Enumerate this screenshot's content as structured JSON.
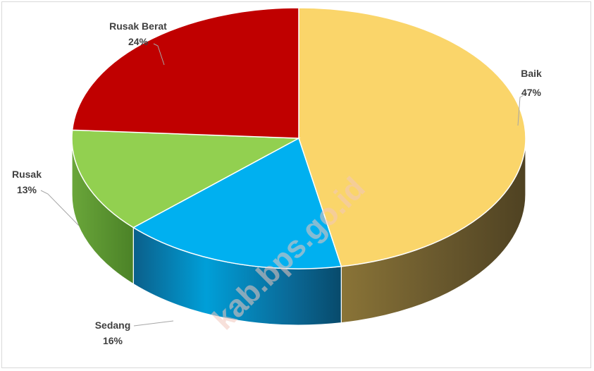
{
  "chart_data": {
    "type": "pie",
    "style": "3d",
    "slices": [
      {
        "label": "Baik",
        "percent_label": "47%",
        "value": 47,
        "color": "#FAD56A",
        "side_color": "#6B5A2E"
      },
      {
        "label": "Sedang",
        "percent_label": "16%",
        "value": 16,
        "color": "#00B0F0",
        "side_color": "#0A4F73"
      },
      {
        "label": "Rusak",
        "percent_label": "13%",
        "value": 13,
        "color": "#92D050",
        "side_color": "#4F8A2A"
      },
      {
        "label": "Rusak Berat",
        "percent_label": "24%",
        "value": 24,
        "color": "#C00000",
        "side_color": "#7A0000"
      }
    ],
    "legend": "none"
  },
  "watermark": "kab.bps.go.id"
}
